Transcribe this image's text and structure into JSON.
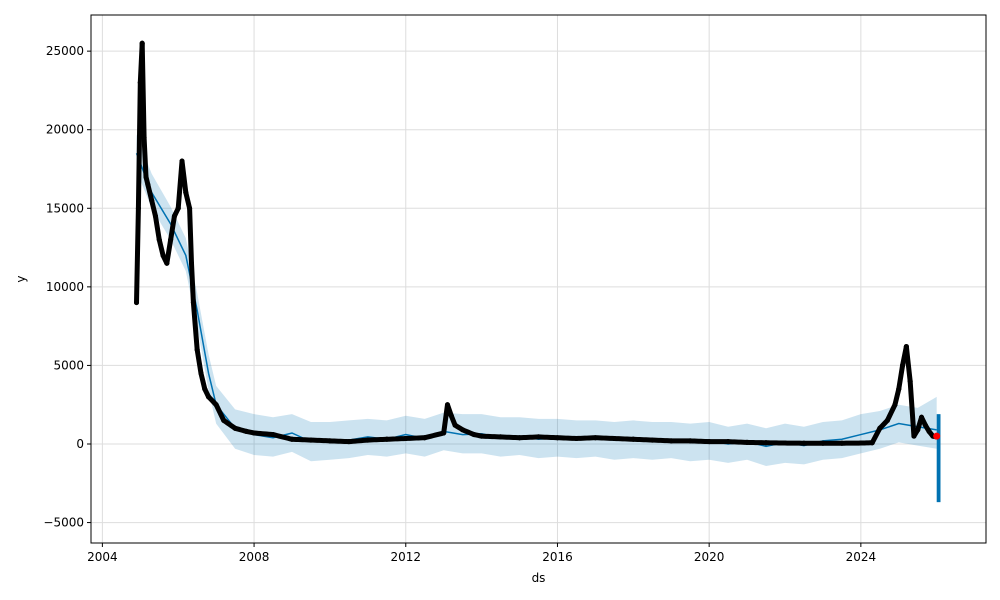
{
  "chart_data": {
    "type": "scatter",
    "xlabel": "ds",
    "ylabel": "y",
    "xlim": [
      2003.7,
      2027.3
    ],
    "ylim": [
      -6300,
      27300
    ],
    "x_ticks": [
      2004,
      2008,
      2012,
      2016,
      2020,
      2024
    ],
    "x_tick_labels": [
      "2004",
      "2008",
      "2012",
      "2016",
      "2020",
      "2024"
    ],
    "y_ticks": [
      -5000,
      0,
      5000,
      10000,
      15000,
      20000,
      25000
    ],
    "y_tick_labels": [
      "−5000",
      "0",
      "5000",
      "10000",
      "15000",
      "20000",
      "25000"
    ],
    "grid": true,
    "colors": {
      "observed": "#000000",
      "forecast": "#0072B2",
      "interval": "#0072B2",
      "highlight": "#ff0000"
    },
    "series": [
      {
        "role": "observed",
        "x": [
          2004.9,
          2004.95,
          2005.0,
          2005.05,
          2005.1,
          2005.15,
          2005.2,
          2005.3,
          2005.4,
          2005.5,
          2005.6,
          2005.7,
          2005.8,
          2005.9,
          2006.0,
          2006.1,
          2006.2,
          2006.3,
          2006.35,
          2006.4,
          2006.5,
          2006.6,
          2006.7,
          2006.8,
          2007.0,
          2007.2,
          2007.5,
          2007.8,
          2008.0,
          2008.5,
          2009.0,
          2009.5,
          2010.0,
          2010.5,
          2011.0,
          2011.5,
          2012.0,
          2012.5,
          2013.0,
          2013.1,
          2013.2,
          2013.3,
          2013.5,
          2013.8,
          2014.0,
          2014.5,
          2015.0,
          2015.5,
          2016.0,
          2016.5,
          2017.0,
          2017.5,
          2018.0,
          2018.5,
          2019.0,
          2019.5,
          2020.0,
          2020.5,
          2021.0,
          2021.5,
          2022.0,
          2022.5,
          2023.0,
          2023.5,
          2024.0,
          2024.3,
          2024.5,
          2024.7,
          2024.9,
          2025.0,
          2025.1,
          2025.2,
          2025.3,
          2025.4,
          2025.5,
          2025.6,
          2025.7,
          2025.8,
          2025.9,
          2026.0
        ],
        "y": [
          9000,
          15000,
          23000,
          25500,
          19500,
          17000,
          16500,
          15500,
          14500,
          13000,
          12000,
          11500,
          13000,
          14500,
          15000,
          18000,
          16000,
          15000,
          11500,
          9000,
          6000,
          4500,
          3500,
          3000,
          2500,
          1500,
          1000,
          800,
          700,
          600,
          300,
          250,
          200,
          150,
          250,
          300,
          350,
          400,
          700,
          2500,
          1800,
          1200,
          900,
          600,
          500,
          450,
          400,
          450,
          400,
          350,
          400,
          350,
          300,
          250,
          200,
          200,
          150,
          150,
          100,
          80,
          60,
          50,
          50,
          50,
          60,
          80,
          1000,
          1500,
          2500,
          3500,
          5000,
          6200,
          4000,
          500,
          900,
          1700,
          1200,
          800,
          500,
          450
        ]
      },
      {
        "role": "forecast",
        "x": [
          2004.9,
          2005.3,
          2005.8,
          2006.2,
          2006.5,
          2006.8,
          2007.0,
          2007.5,
          2008.0,
          2008.5,
          2009.0,
          2009.5,
          2010.0,
          2010.5,
          2011.0,
          2011.5,
          2012.0,
          2012.5,
          2013.0,
          2013.5,
          2014.0,
          2014.5,
          2015.0,
          2015.5,
          2016.0,
          2016.5,
          2017.0,
          2017.5,
          2018.0,
          2018.5,
          2019.0,
          2019.5,
          2020.0,
          2020.5,
          2021.0,
          2021.5,
          2022.0,
          2022.5,
          2023.0,
          2023.5,
          2024.0,
          2024.5,
          2025.0,
          2025.5,
          2026.0
        ],
        "y": [
          18500,
          16000,
          14000,
          12000,
          8500,
          4500,
          2500,
          1000,
          600,
          400,
          700,
          150,
          200,
          250,
          450,
          300,
          600,
          350,
          800,
          600,
          650,
          400,
          500,
          300,
          400,
          300,
          350,
          250,
          300,
          200,
          250,
          100,
          200,
          0,
          150,
          -150,
          100,
          -100,
          200,
          300,
          600,
          900,
          1300,
          1100,
          900
        ]
      },
      {
        "role": "interval",
        "x": [
          2004.9,
          2005.3,
          2005.8,
          2006.2,
          2006.5,
          2006.8,
          2007.0,
          2007.5,
          2008.0,
          2008.5,
          2009.0,
          2009.5,
          2010.0,
          2010.5,
          2011.0,
          2011.5,
          2012.0,
          2012.5,
          2013.0,
          2013.5,
          2014.0,
          2014.5,
          2015.0,
          2015.5,
          2016.0,
          2016.5,
          2017.0,
          2017.5,
          2018.0,
          2018.5,
          2019.0,
          2019.5,
          2020.0,
          2020.5,
          2021.0,
          2021.5,
          2022.0,
          2022.5,
          2023.0,
          2023.5,
          2024.0,
          2024.5,
          2025.0,
          2025.5,
          2026.0
        ],
        "lower": [
          17400,
          15000,
          13000,
          11000,
          7500,
          3400,
          1300,
          -300,
          -700,
          -800,
          -500,
          -1100,
          -1000,
          -900,
          -700,
          -800,
          -600,
          -800,
          -400,
          -600,
          -600,
          -800,
          -700,
          -900,
          -800,
          -900,
          -800,
          -1000,
          -900,
          -1000,
          -900,
          -1100,
          -1000,
          -1200,
          -1000,
          -1400,
          -1200,
          -1300,
          -1000,
          -900,
          -600,
          -300,
          100,
          -100,
          -300
        ],
        "upper": [
          19700,
          17200,
          15100,
          13100,
          9600,
          5700,
          3700,
          2200,
          1900,
          1700,
          1900,
          1400,
          1400,
          1500,
          1600,
          1500,
          1800,
          1600,
          2000,
          1900,
          1900,
          1700,
          1700,
          1600,
          1600,
          1500,
          1500,
          1400,
          1500,
          1400,
          1400,
          1300,
          1400,
          1100,
          1300,
          1000,
          1300,
          1100,
          1400,
          1500,
          1900,
          2100,
          2500,
          2300,
          3000
        ]
      },
      {
        "role": "forecast-band",
        "x": [
          2026.0,
          2026.1
        ],
        "lower": [
          -3700,
          -3700
        ],
        "upper": [
          1900,
          1900
        ]
      },
      {
        "role": "highlight",
        "x": [
          2026.0
        ],
        "y": [
          500
        ]
      }
    ]
  }
}
